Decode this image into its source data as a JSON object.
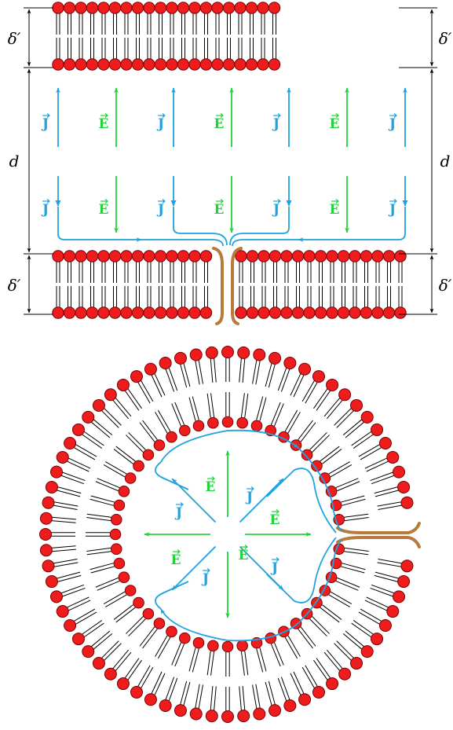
{
  "labels": {
    "delta_prime": "δ′",
    "d": "d",
    "J": "J",
    "E": "E"
  },
  "colors": {
    "head_fill": "#ee1c1c",
    "head_stroke": "#7a0000",
    "tail": "#000000",
    "current": "#1ea2e0",
    "field": "#22d43a",
    "channel": "#b87a3a",
    "dimension": "#000000"
  },
  "icons": {
    "arrow": "arrowhead",
    "vector_hat": "arrow-over-letter"
  },
  "flat_membrane": {
    "channel_present": true,
    "field_direction_upper": "up",
    "field_direction_lower": "down"
  },
  "circular_vesicle": {
    "channel_present": true,
    "field_direction": "radial-outward"
  }
}
